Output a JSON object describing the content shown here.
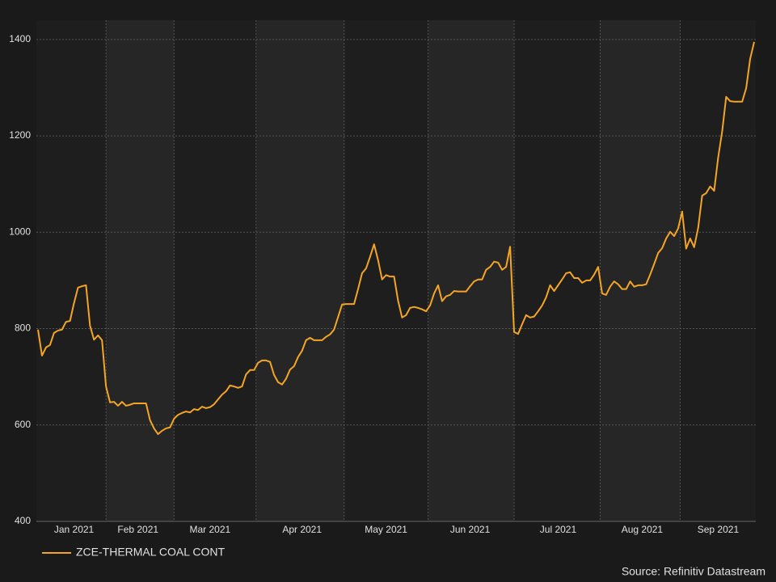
{
  "chart_data": {
    "type": "line",
    "categories": [
      null,
      null,
      null,
      null,
      null,
      null,
      null,
      null,
      null,
      "Jan 2021",
      null,
      null,
      null,
      null,
      null,
      null,
      null,
      null,
      null,
      null,
      null,
      null,
      null,
      null,
      null,
      "Feb 2021",
      null,
      null,
      null,
      null,
      null,
      null,
      null,
      null,
      null,
      null,
      null,
      null,
      null,
      null,
      null,
      null,
      null,
      "Mar 2021",
      null,
      null,
      null,
      null,
      null,
      null,
      null,
      null,
      null,
      null,
      null,
      null,
      null,
      null,
      null,
      null,
      null,
      null,
      null,
      null,
      null,
      null,
      "Apr 2021",
      null,
      null,
      null,
      null,
      null,
      null,
      null,
      null,
      null,
      null,
      null,
      null,
      null,
      null,
      null,
      null,
      null,
      null,
      null,
      null,
      "May 2021",
      null,
      null,
      null,
      null,
      null,
      null,
      null,
      null,
      null,
      null,
      null,
      null,
      null,
      null,
      null,
      null,
      null,
      null,
      null,
      null,
      "Jun 2021",
      null,
      null,
      null,
      null,
      null,
      null,
      null,
      null,
      null,
      null,
      null,
      null,
      null,
      null,
      null,
      null,
      null,
      null,
      null,
      null,
      null,
      "Jul 2021",
      null,
      null,
      null,
      null,
      null,
      null,
      null,
      null,
      null,
      null,
      null,
      null,
      null,
      null,
      null,
      null,
      null,
      null,
      null,
      null,
      "Aug 2021",
      null,
      null,
      null,
      null,
      null,
      null,
      null,
      null,
      null,
      null,
      null,
      null,
      null,
      null,
      null,
      null,
      null,
      null,
      "Sep 2021",
      null,
      null,
      null,
      null,
      null,
      null,
      null,
      null,
      null
    ],
    "series": [
      {
        "name": "ZCE-THERMAL COAL CONT",
        "color": "#f5a524",
        "values": [
          798,
          744,
          761,
          766,
          791,
          796,
          798,
          814,
          816,
          853,
          885,
          888,
          890,
          806,
          777,
          786,
          776,
          680,
          647,
          648,
          640,
          648,
          640,
          642,
          645,
          645,
          645,
          645,
          610,
          593,
          581,
          588,
          593,
          595,
          613,
          621,
          625,
          628,
          626,
          633,
          631,
          638,
          635,
          637,
          643,
          653,
          663,
          670,
          682,
          680,
          677,
          680,
          705,
          714,
          714,
          729,
          734,
          734,
          731,
          704,
          689,
          684,
          696,
          715,
          722,
          741,
          754,
          776,
          781,
          776,
          776,
          776,
          783,
          788,
          798,
          824,
          850,
          851,
          851,
          851,
          882,
          915,
          925,
          949,
          975,
          942,
          902,
          911,
          908,
          908,
          858,
          823,
          828,
          843,
          845,
          843,
          840,
          836,
          848,
          873,
          890,
          857,
          867,
          870,
          878,
          877,
          877,
          877,
          888,
          898,
          902,
          902,
          922,
          928,
          939,
          937,
          922,
          928,
          970,
          793,
          789,
          809,
          828,
          823,
          825,
          836,
          848,
          865,
          890,
          878,
          890,
          902,
          915,
          917,
          905,
          905,
          895,
          900,
          900,
          912,
          928,
          873,
          870,
          887,
          898,
          892,
          882,
          882,
          898,
          887,
          890,
          890,
          892,
          912,
          934,
          957,
          967,
          987,
          1001,
          992,
          1008,
          1043,
          966,
          987,
          969,
          1009,
          1076,
          1081,
          1095,
          1086,
          1155,
          1209,
          1281,
          1272,
          1271,
          1271,
          1271,
          1299,
          1360,
          1395
        ]
      }
    ],
    "ylim": [
      400,
      1440
    ],
    "yticks": [
      400,
      600,
      800,
      1000,
      1200,
      1400
    ],
    "grid": true,
    "source": "Source: Refinitiv Datastream"
  }
}
